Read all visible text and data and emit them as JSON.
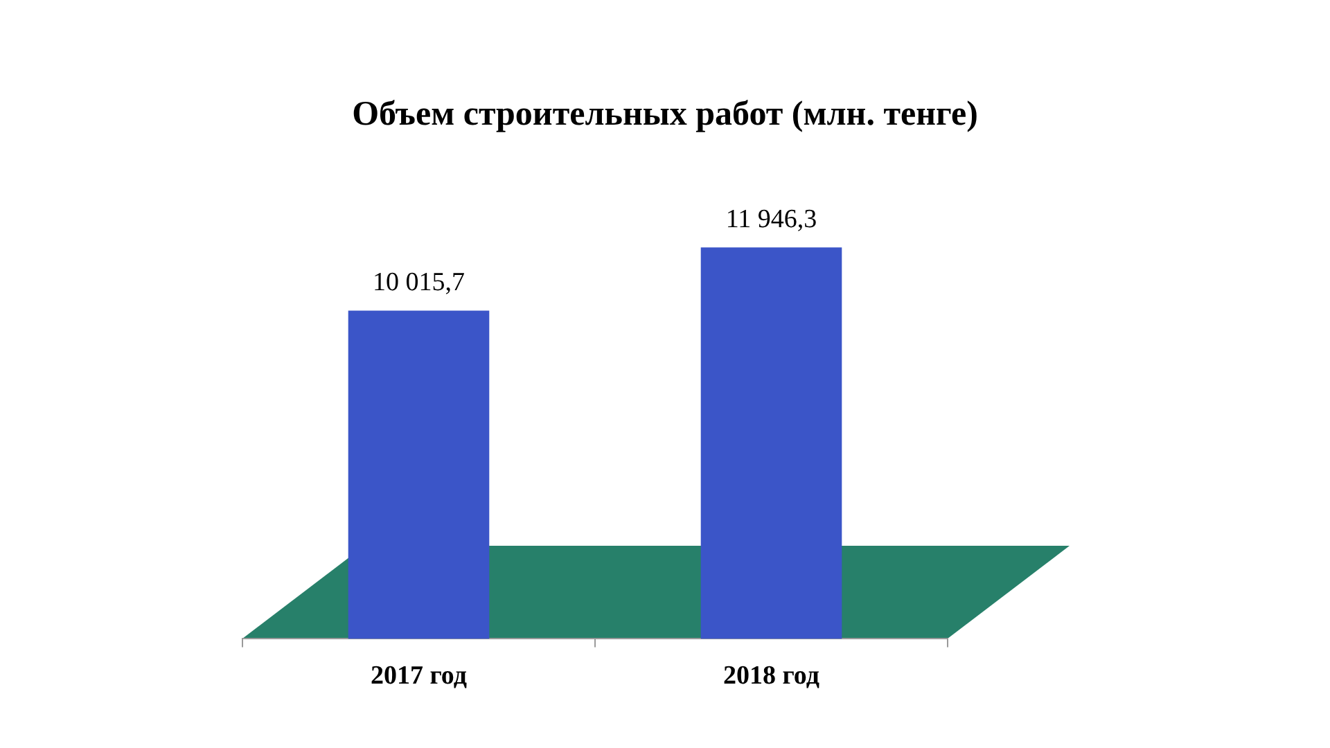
{
  "chart_data": {
    "type": "bar",
    "title": "Объем строительных работ (млн. тенге)",
    "categories": [
      "2017 год",
      "2018 год"
    ],
    "values": [
      10015.7,
      11946.3
    ],
    "value_labels": [
      "10 015,7",
      "11 946,3"
    ],
    "color": "#3b55c8"
  }
}
